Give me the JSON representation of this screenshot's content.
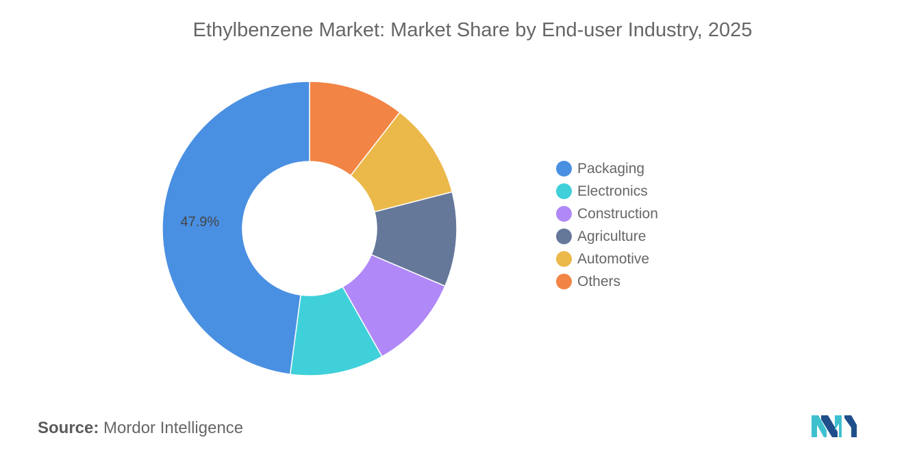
{
  "chart_data": {
    "type": "pie",
    "variant": "donut",
    "title": "Ethylbenzene Market: Market Share by End-user Industry, 2025",
    "categories": [
      "Packaging",
      "Electronics",
      "Construction",
      "Agriculture",
      "Automotive",
      "Others"
    ],
    "values": [
      47.9,
      10.3,
      10.4,
      10.4,
      10.5,
      10.5
    ],
    "colors": [
      "#4a90e2",
      "#3fd0da",
      "#b088f7",
      "#66789a",
      "#ebb84a",
      "#f28445"
    ],
    "data_labels": [
      {
        "category": "Packaging",
        "text": "47.9%"
      }
    ],
    "legend_position": "right"
  },
  "source": {
    "label": "Source:",
    "value": "Mordor Intelligence"
  },
  "logo": {
    "icon": "mordor-intelligence-logo-icon",
    "colors": [
      "#1e4f8a",
      "#3fc0cf"
    ]
  }
}
